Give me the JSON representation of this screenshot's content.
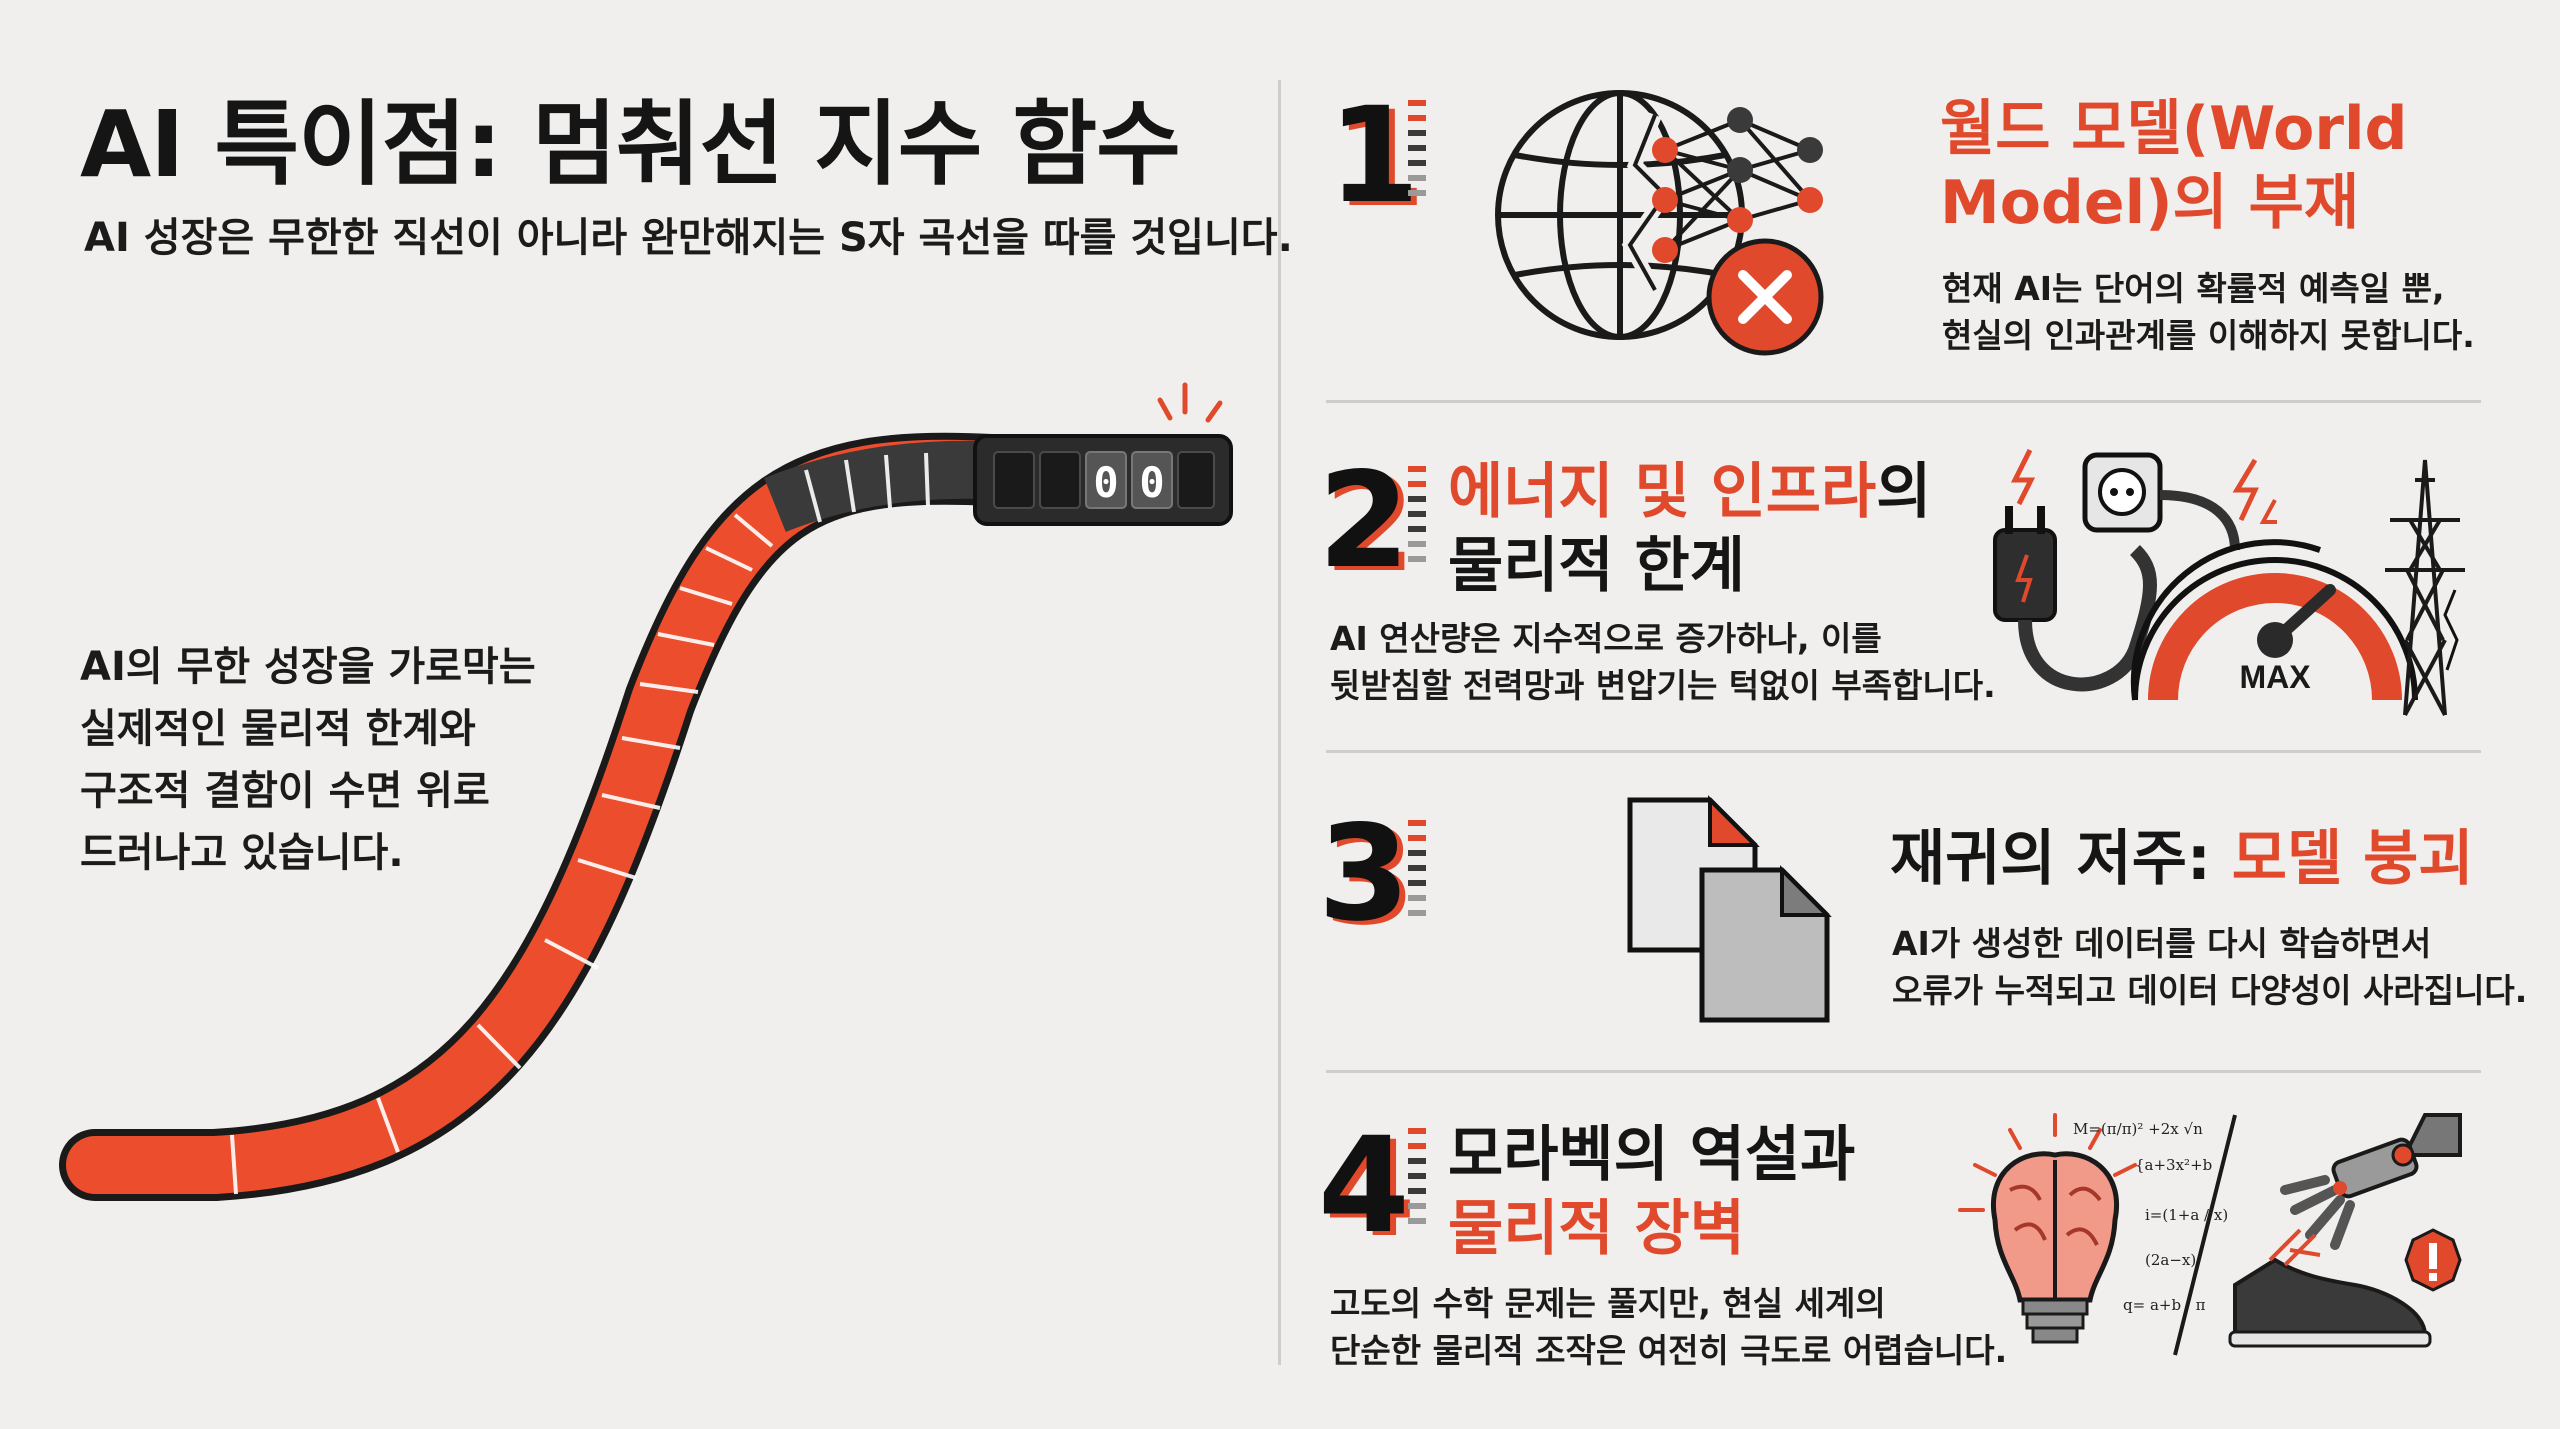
{
  "header": {
    "title": "AI 특이점: 멈춰선 지수 함수",
    "subtitle": "AI 성장은 무한한 직선이 아니라 완만해지는 S자 곡선을 따를 것입니다."
  },
  "left_panel": {
    "description_lines": [
      "AI의 무한 성장을 가로막는",
      "실제적인 물리적 한계와",
      "구조적 결함이 수면 위로",
      "드러나고 있습니다."
    ],
    "counter_digits": [
      "0",
      "0"
    ]
  },
  "factors": [
    {
      "number": "1",
      "title_lines": [
        "월드 모델(World",
        "Model)의 부재"
      ],
      "desc_lines": [
        "현재 AI는 단어의 확률적 예측일 뿐,",
        "현실의 인과관계를 이해하지 못합니다."
      ]
    },
    {
      "number": "2",
      "title_red": "에너지 및 인프라",
      "title_black_suffix": "의",
      "title_line2": "물리적 한계",
      "desc_lines": [
        "AI 연산량은 지수적으로 증가하나, 이를",
        "뒷받침할 전력망과 변압기는 턱없이 부족합니다."
      ],
      "gauge_label": "MAX"
    },
    {
      "number": "3",
      "title_black": "재귀의 저주: ",
      "title_red": "모델 붕괴",
      "desc_lines": [
        "AI가 생성한 데이터를 다시 학습하면서",
        "오류가 누적되고 데이터 다양성이 사라집니다."
      ]
    },
    {
      "number": "4",
      "title_line1": "모라벡의 역설과",
      "title_line2": "물리적 장벽",
      "desc_lines": [
        "고도의 수학 문제는 풀지만, 현실 세계의",
        "단순한 물리적 조작은 여전히 극도로 어렵습니다."
      ],
      "formula_lines": [
        "M=(π/π)² +2x √n",
        "{a+3x²+b",
        "i=(1+a / x)",
        "(2a−x)",
        "q= a+b / π"
      ]
    }
  ],
  "colors": {
    "accent": "#e0492b",
    "dark": "#151515",
    "background": "#f0efed",
    "divider": "#cfcdcb"
  }
}
